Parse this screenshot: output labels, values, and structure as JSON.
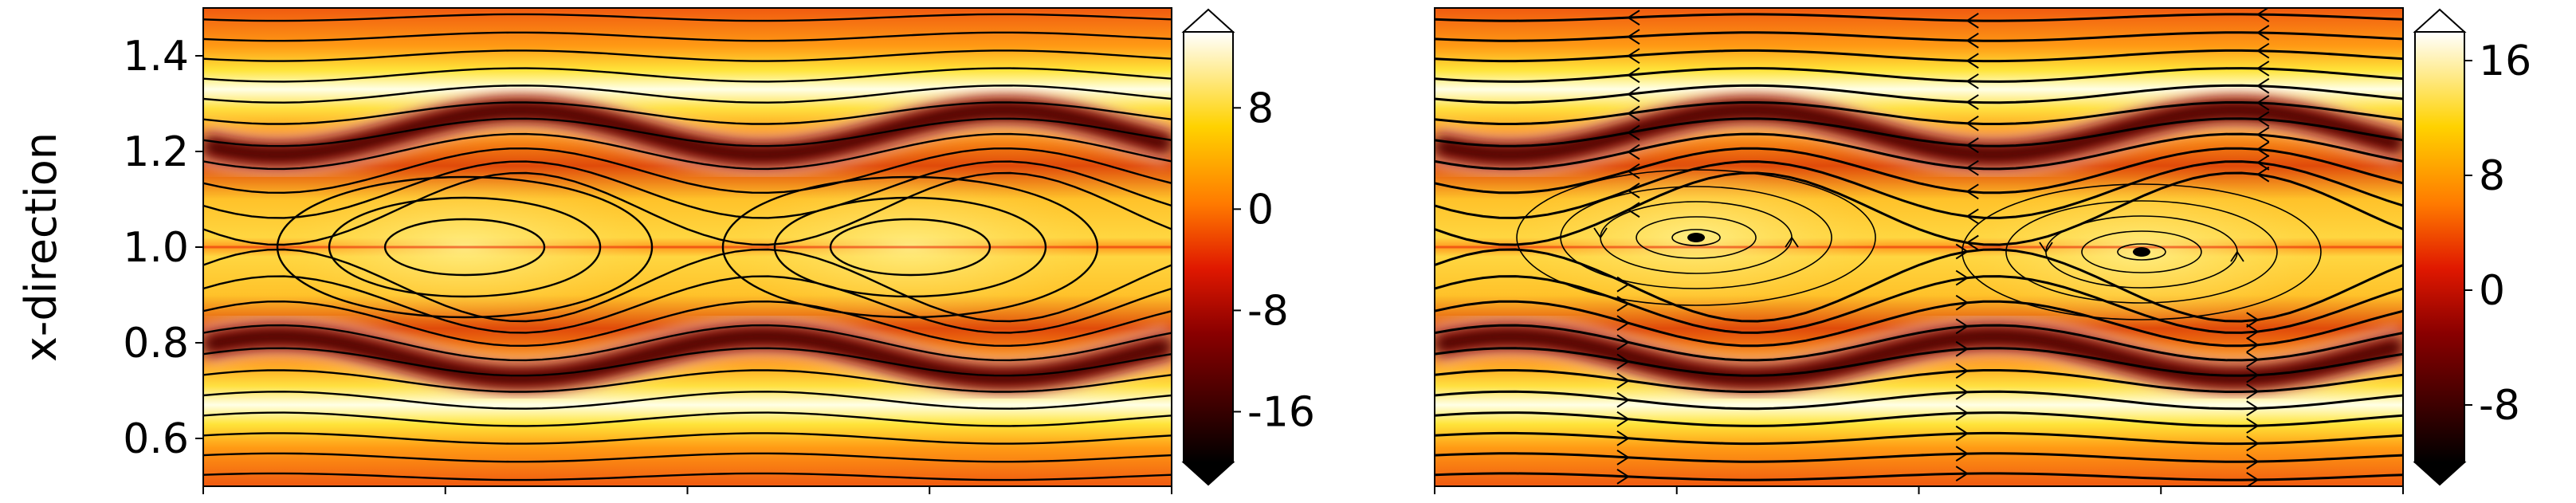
{
  "chart_data": [
    {
      "type": "heatmap",
      "title": "",
      "xlabel": "",
      "ylabel": "x-direction",
      "ylim": [
        0.5,
        1.5
      ],
      "yticks": [
        0.6,
        0.8,
        1.0,
        1.2,
        1.4
      ],
      "ytick_labels": [
        "0.6",
        "0.8",
        "1.0",
        "1.2",
        "1.4"
      ],
      "xtick_count": 5,
      "xtick_labels": [],
      "overlay": "streamlines (solid black contour lines)",
      "colormap": "hot",
      "colorbar": {
        "range": [
          -20,
          14
        ],
        "ticks": [
          -16,
          -8,
          0,
          8
        ],
        "tick_labels": [
          "-16",
          "-8",
          "0",
          "8"
        ],
        "extend": "both"
      },
      "features": {
        "closed_islands_center_y": 1.0,
        "island_centers_x_fraction": [
          0.27,
          0.73
        ],
        "negative_bands_y": [
          0.77,
          1.24
        ]
      }
    },
    {
      "type": "heatmap",
      "title": "",
      "xlabel": "",
      "ylabel": "",
      "ylim": [
        0.5,
        1.5
      ],
      "xtick_count": 5,
      "xtick_labels": [],
      "overlay": "streamlines with arrows",
      "colormap": "hot",
      "colorbar": {
        "range": [
          -12,
          18
        ],
        "ticks": [
          -8,
          0,
          8,
          16
        ],
        "tick_labels": [
          "-8",
          "0",
          "8",
          "16"
        ],
        "extend": "both"
      },
      "features": {
        "vortex_centers_x_fraction": [
          0.27,
          0.73
        ],
        "vortex_centers_y": [
          1.02,
          0.99
        ],
        "negative_bands_y": [
          0.78,
          1.24
        ]
      }
    }
  ]
}
